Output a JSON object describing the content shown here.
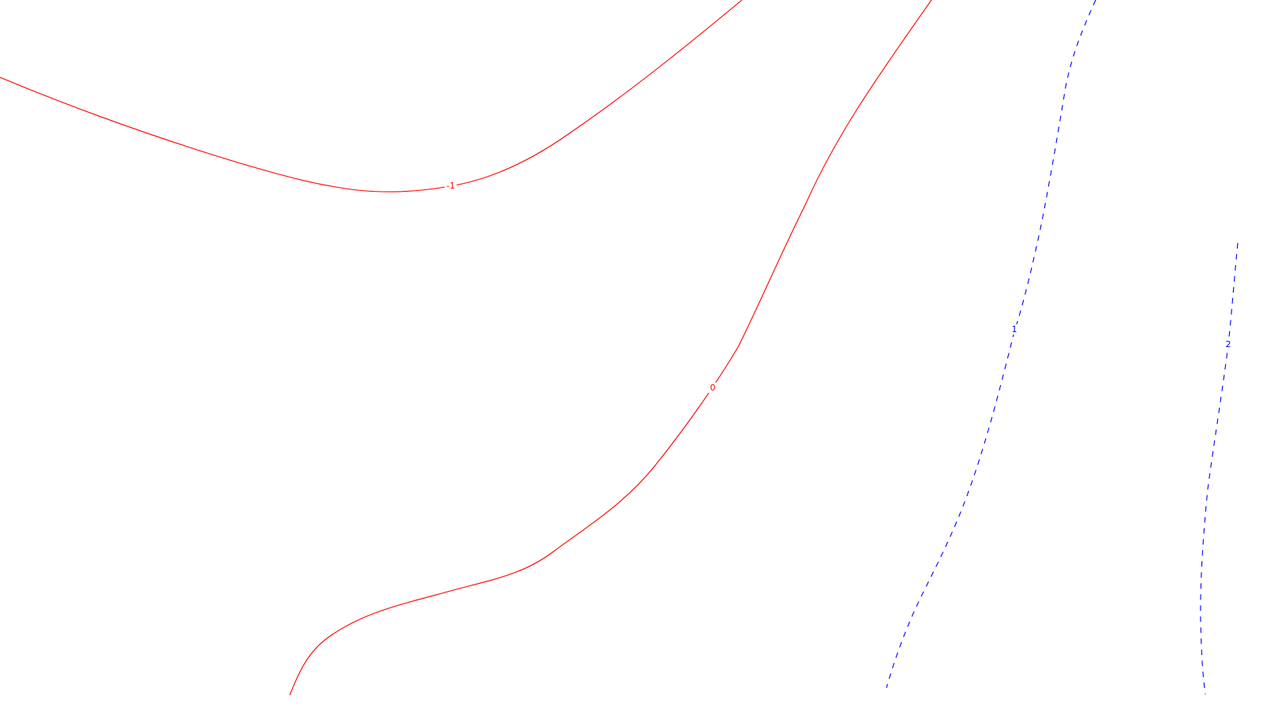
{
  "chart_data": {
    "type": "contour",
    "title": "",
    "xlabel": "",
    "ylabel": "",
    "grid": false,
    "legend": "none",
    "line_colors": {
      "negative": "#ff0000",
      "zero": "#ff0000",
      "positive": "#0000ff"
    },
    "levels": [
      {
        "value": -1,
        "label": "-1",
        "style": "solid"
      },
      {
        "value": 0,
        "label": "0",
        "style": "solid"
      },
      {
        "value": 1,
        "label": "1",
        "style": "dashed"
      },
      {
        "value": 2,
        "label": "2",
        "style": "dashed"
      }
    ]
  }
}
